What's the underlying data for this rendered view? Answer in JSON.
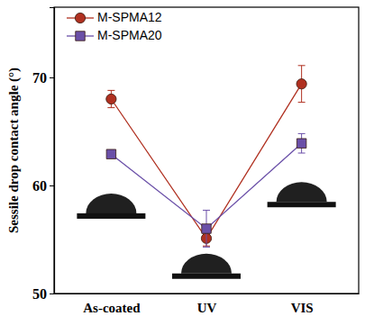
{
  "chart_data": {
    "type": "line",
    "y_label": "Sessile drop contact angle (°)",
    "categories": [
      "As-coated",
      "UV",
      "VIS"
    ],
    "series": [
      {
        "name": "M-SPMA12",
        "color": "#b03020",
        "marker": "circle",
        "values": [
          68.0,
          55.1,
          69.4
        ],
        "errors": [
          0.8,
          0.7,
          1.7
        ]
      },
      {
        "name": "M-SPMA20",
        "color": "#6a4fa8",
        "marker": "square",
        "values": [
          62.9,
          56.0,
          63.9
        ],
        "errors": [
          0.3,
          1.7,
          0.9
        ]
      }
    ],
    "ylim": [
      50,
      76.5
    ],
    "yticks": [
      50,
      60,
      70
    ],
    "legend": "upper left"
  }
}
